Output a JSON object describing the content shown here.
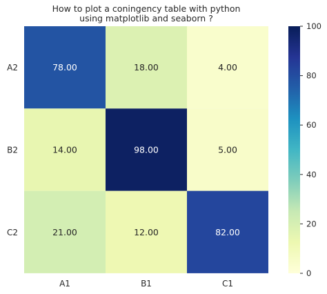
{
  "chart_data": {
    "type": "heatmap",
    "title": "How to plot a coningency table with python\nusing matplotlib and seaborn ?",
    "xlabel": "",
    "ylabel": "",
    "x_categories": [
      "A1",
      "B1",
      "C1"
    ],
    "y_categories": [
      "A2",
      "B2",
      "C2"
    ],
    "values": [
      [
        78,
        18,
        4
      ],
      [
        14,
        98,
        5
      ],
      [
        21,
        12,
        82
      ]
    ],
    "cell_labels": [
      [
        "78.00",
        "18.00",
        "4.00"
      ],
      [
        "14.00",
        "98.00",
        "5.00"
      ],
      [
        "21.00",
        "12.00",
        "82.00"
      ]
    ],
    "colorbar": {
      "min": 0,
      "max": 100,
      "ticks": [
        0,
        20,
        40,
        60,
        80,
        100
      ],
      "colormap": "YlGnBu"
    },
    "grid": false
  }
}
